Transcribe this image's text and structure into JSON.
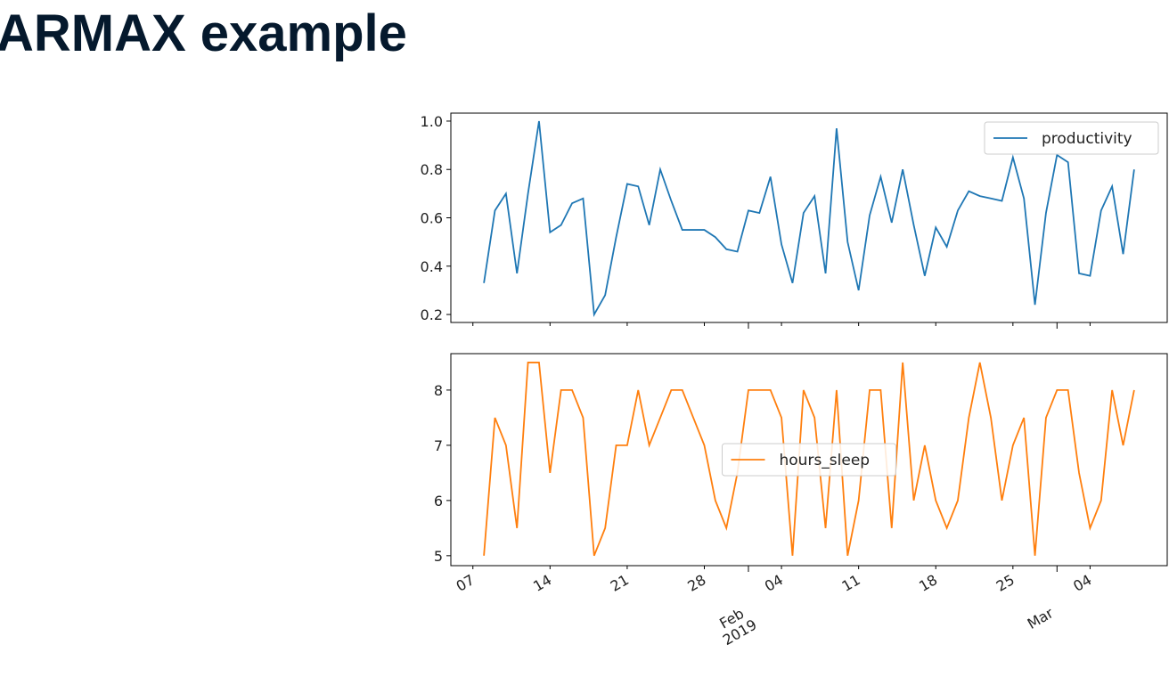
{
  "title": "ARMAX example",
  "chart_data": [
    {
      "type": "line",
      "x": [
        "2019-01-08",
        "2019-01-09",
        "2019-01-10",
        "2019-01-11",
        "2019-01-12",
        "2019-01-13",
        "2019-01-14",
        "2019-01-15",
        "2019-01-16",
        "2019-01-17",
        "2019-01-18",
        "2019-01-19",
        "2019-01-20",
        "2019-01-21",
        "2019-01-22",
        "2019-01-23",
        "2019-01-24",
        "2019-01-25",
        "2019-01-26",
        "2019-01-27",
        "2019-01-28",
        "2019-01-29",
        "2019-01-30",
        "2019-01-31",
        "2019-02-01",
        "2019-02-02",
        "2019-02-03",
        "2019-02-04",
        "2019-02-05",
        "2019-02-06",
        "2019-02-07",
        "2019-02-08",
        "2019-02-09",
        "2019-02-10",
        "2019-02-11",
        "2019-02-12",
        "2019-02-13",
        "2019-02-14",
        "2019-02-15",
        "2019-02-16",
        "2019-02-17",
        "2019-02-18",
        "2019-02-19",
        "2019-02-20",
        "2019-02-21",
        "2019-02-22",
        "2019-02-23",
        "2019-02-24",
        "2019-02-25",
        "2019-02-26",
        "2019-02-27",
        "2019-02-28",
        "2019-03-01",
        "2019-03-02",
        "2019-03-03",
        "2019-03-04",
        "2019-03-05",
        "2019-03-06",
        "2019-03-07",
        "2019-03-08"
      ],
      "series": [
        {
          "name": "productivity",
          "color": "#1f77b4",
          "values": [
            0.33,
            0.63,
            0.7,
            0.37,
            0.7,
            1.0,
            0.54,
            0.57,
            0.66,
            0.68,
            0.2,
            0.28,
            0.52,
            0.74,
            0.73,
            0.57,
            0.8,
            0.67,
            0.55,
            0.55,
            0.55,
            0.52,
            0.47,
            0.46,
            0.63,
            0.62,
            0.77,
            0.49,
            0.33,
            0.62,
            0.69,
            0.37,
            0.97,
            0.5,
            0.3,
            0.61,
            0.77,
            0.58,
            0.8,
            0.57,
            0.36,
            0.56,
            0.48,
            0.63,
            0.71,
            0.69,
            0.68,
            0.67,
            0.85,
            0.68,
            0.24,
            0.62,
            0.86,
            0.83,
            0.37,
            0.36,
            0.63,
            0.73,
            0.45,
            0.8
          ]
        }
      ],
      "xlim": [
        "2019-01-05",
        "2019-03-11"
      ],
      "ylim": [
        0.167,
        1.033
      ],
      "yticks": [
        0.2,
        0.4,
        0.6,
        0.8,
        {
          "value": 1,
          "label": "1.0"
        }
      ],
      "legend": "upper right"
    },
    {
      "type": "line",
      "x": [
        "2019-01-08",
        "2019-01-09",
        "2019-01-10",
        "2019-01-11",
        "2019-01-12",
        "2019-01-13",
        "2019-01-14",
        "2019-01-15",
        "2019-01-16",
        "2019-01-17",
        "2019-01-18",
        "2019-01-19",
        "2019-01-20",
        "2019-01-21",
        "2019-01-22",
        "2019-01-23",
        "2019-01-24",
        "2019-01-25",
        "2019-01-26",
        "2019-01-27",
        "2019-01-28",
        "2019-01-29",
        "2019-01-30",
        "2019-01-31",
        "2019-02-01",
        "2019-02-02",
        "2019-02-03",
        "2019-02-04",
        "2019-02-05",
        "2019-02-06",
        "2019-02-07",
        "2019-02-08",
        "2019-02-09",
        "2019-02-10",
        "2019-02-11",
        "2019-02-12",
        "2019-02-13",
        "2019-02-14",
        "2019-02-15",
        "2019-02-16",
        "2019-02-17",
        "2019-02-18",
        "2019-02-19",
        "2019-02-20",
        "2019-02-21",
        "2019-02-22",
        "2019-02-23",
        "2019-02-24",
        "2019-02-25",
        "2019-02-26",
        "2019-02-27",
        "2019-02-28",
        "2019-03-01",
        "2019-03-02",
        "2019-03-03",
        "2019-03-04",
        "2019-03-05",
        "2019-03-06",
        "2019-03-07",
        "2019-03-08"
      ],
      "series": [
        {
          "name": "hours_sleep",
          "color": "#ff7f0e",
          "values": [
            5,
            7.5,
            7,
            5.5,
            8.5,
            8.5,
            6.5,
            8,
            8,
            7.5,
            5,
            5.5,
            7,
            7,
            8,
            7,
            7.5,
            8,
            8,
            7.5,
            7,
            6,
            5.5,
            6.5,
            8,
            8,
            8,
            7.5,
            5,
            8,
            7.5,
            5.5,
            8,
            5,
            6,
            8,
            8,
            5.5,
            8.5,
            6,
            7,
            6,
            5.5,
            6,
            7.5,
            8.5,
            7.5,
            6,
            7,
            7.5,
            5,
            7.5,
            8,
            8,
            6.5,
            5.5,
            6,
            8,
            7,
            8
          ]
        }
      ],
      "xlim": [
        "2019-01-05",
        "2019-03-11"
      ],
      "ylim": [
        4.82,
        8.66
      ],
      "yticks": [
        5,
        6,
        7,
        8
      ],
      "xticks": [
        {
          "value": "2019-01-07",
          "label": "07"
        },
        {
          "value": "2019-01-14",
          "label": "14"
        },
        {
          "value": "2019-01-21",
          "label": "21"
        },
        {
          "value": "2019-01-28",
          "label": "28"
        },
        {
          "value": "2019-02-04",
          "label": "04"
        },
        {
          "value": "2019-02-11",
          "label": "11"
        },
        {
          "value": "2019-02-18",
          "label": "18"
        },
        {
          "value": "2019-02-25",
          "label": "25"
        },
        {
          "value": "2019-03-04",
          "label": "04"
        }
      ],
      "xticks_major": [
        {
          "value": "2019-02-01",
          "label": "Feb\n2019"
        },
        {
          "value": "2019-03-01",
          "label": "Mar"
        }
      ],
      "legend": "center"
    }
  ]
}
